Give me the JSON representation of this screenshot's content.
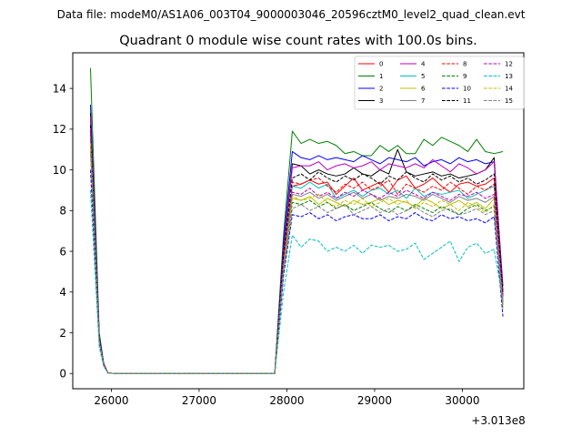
{
  "suptitle": "Data file: modeM0/AS1A06_003T04_9000003046_20596cztM0_level2_quad_clean.evt",
  "chart_data": {
    "type": "line",
    "title": "Quadrant 0 module wise count rates with 100.0s bins.",
    "xlabel": "",
    "ylabel": "",
    "x_offset_label": "+3.013e8",
    "xlim": [
      25560,
      30700
    ],
    "ylim": [
      -0.75,
      15.75
    ],
    "xticks": [
      26000,
      27000,
      28000,
      29000,
      30000
    ],
    "yticks": [
      0,
      2,
      4,
      6,
      8,
      10,
      12,
      14
    ],
    "grid": false,
    "legend": {
      "placement": "top-right",
      "columns": 4
    },
    "x": [
      25762,
      25862,
      25912,
      25962,
      26062,
      26162,
      26262,
      26362,
      26462,
      26562,
      26662,
      26762,
      26862,
      26962,
      27062,
      27162,
      27262,
      27362,
      27462,
      27562,
      27662,
      27762,
      27862,
      27962,
      28062,
      28162,
      28262,
      28362,
      28462,
      28562,
      28662,
      28762,
      28862,
      28962,
      29062,
      29162,
      29262,
      29362,
      29462,
      29562,
      29662,
      29762,
      29862,
      29962,
      30062,
      30162,
      30262,
      30362,
      30462
    ],
    "series": [
      {
        "name": "0",
        "color": "#ff0000",
        "dash": "solid",
        "values": [
          12.5,
          1.8,
          0.45,
          0.02,
          0,
          0,
          0,
          0,
          0,
          0,
          0,
          0,
          0,
          0,
          0,
          0,
          0,
          0,
          0,
          0,
          0,
          0,
          0,
          5.5,
          9.2,
          9.3,
          9.5,
          9.3,
          9.4,
          8.8,
          9.2,
          9.6,
          9.0,
          9.2,
          9.4,
          8.9,
          9.5,
          9.7,
          9.1,
          9.3,
          9.6,
          9.2,
          8.9,
          9.3,
          9.4,
          9.2,
          9.3,
          9.6,
          3.8
        ]
      },
      {
        "name": "1",
        "color": "#008000",
        "dash": "solid",
        "values": [
          15.0,
          2.0,
          0.5,
          0.02,
          0,
          0,
          0,
          0,
          0,
          0,
          0,
          0,
          0,
          0,
          0,
          0,
          0,
          0,
          0,
          0,
          0,
          0,
          0,
          6.8,
          11.9,
          11.3,
          11.5,
          11.3,
          11.4,
          11.2,
          10.8,
          10.9,
          10.7,
          10.7,
          11.2,
          10.9,
          11.2,
          10.8,
          10.8,
          11.5,
          11.2,
          11.6,
          11.4,
          11.2,
          10.9,
          11.5,
          10.9,
          10.8,
          10.9
        ]
      },
      {
        "name": "2",
        "color": "#0000ff",
        "dash": "solid",
        "values": [
          13.2,
          1.9,
          0.5,
          0.02,
          0,
          0,
          0,
          0,
          0,
          0,
          0,
          0,
          0,
          0,
          0,
          0,
          0,
          0,
          0,
          0,
          0,
          0,
          0,
          6.4,
          10.9,
          10.6,
          10.5,
          10.7,
          10.5,
          10.6,
          10.5,
          10.4,
          10.7,
          10.5,
          10.3,
          10.6,
          10.5,
          10.4,
          10.6,
          10.2,
          10.4,
          10.5,
          10.3,
          10.6,
          10.4,
          10.5,
          10.3,
          10.4,
          4.3
        ]
      },
      {
        "name": "3",
        "color": "#000000",
        "dash": "solid",
        "values": [
          12.8,
          1.8,
          0.45,
          0.02,
          0,
          0,
          0,
          0,
          0,
          0,
          0,
          0,
          0,
          0,
          0,
          0,
          0,
          0,
          0,
          0,
          0,
          0,
          0,
          6.0,
          10.3,
          10.2,
          9.8,
          10.0,
          9.8,
          9.7,
          9.8,
          10.1,
          9.8,
          9.7,
          10.0,
          9.8,
          11.0,
          9.9,
          9.7,
          9.8,
          9.9,
          9.7,
          9.8,
          9.6,
          9.7,
          9.8,
          10.0,
          10.6,
          4.0
        ]
      },
      {
        "name": "4",
        "color": "#bf00bf",
        "dash": "solid",
        "values": [
          12.6,
          1.8,
          0.45,
          0.02,
          0,
          0,
          0,
          0,
          0,
          0,
          0,
          0,
          0,
          0,
          0,
          0,
          0,
          0,
          0,
          0,
          0,
          0,
          0,
          6.1,
          10.1,
          10.2,
          10.2,
          10.4,
          10.0,
          10.2,
          10.3,
          10.1,
          10.2,
          10.4,
          10.0,
          10.3,
          10.2,
          10.1,
          10.3,
          10.1,
          10.5,
          10.2,
          9.9,
          10.3,
          10.1,
          9.8,
          10.0,
          10.4,
          4.0
        ]
      },
      {
        "name": "5",
        "color": "#00bfbf",
        "dash": "solid",
        "values": [
          11.5,
          1.7,
          0.4,
          0.02,
          0,
          0,
          0,
          0,
          0,
          0,
          0,
          0,
          0,
          0,
          0,
          0,
          0,
          0,
          0,
          0,
          0,
          0,
          0,
          5.6,
          9.2,
          9.1,
          9.4,
          9.1,
          9.3,
          8.6,
          8.8,
          9.0,
          8.7,
          9.0,
          9.1,
          8.8,
          9.0,
          8.6,
          9.1,
          8.7,
          8.9,
          8.8,
          8.9,
          9.0,
          8.6,
          8.8,
          9.0,
          9.2,
          3.6
        ]
      },
      {
        "name": "6",
        "color": "#bfbf00",
        "dash": "solid",
        "values": [
          11.0,
          1.6,
          0.4,
          0.02,
          0,
          0,
          0,
          0,
          0,
          0,
          0,
          0,
          0,
          0,
          0,
          0,
          0,
          0,
          0,
          0,
          0,
          0,
          0,
          5.2,
          8.6,
          8.5,
          8.7,
          8.3,
          8.6,
          8.4,
          8.2,
          8.5,
          8.3,
          8.4,
          8.6,
          8.3,
          8.5,
          8.4,
          8.2,
          8.6,
          8.4,
          8.1,
          8.3,
          8.5,
          8.2,
          8.4,
          8.1,
          8.6,
          3.4
        ]
      },
      {
        "name": "7",
        "color": "#808080",
        "dash": "solid",
        "values": [
          11.2,
          1.6,
          0.4,
          0.02,
          0,
          0,
          0,
          0,
          0,
          0,
          0,
          0,
          0,
          0,
          0,
          0,
          0,
          0,
          0,
          0,
          0,
          0,
          0,
          5.3,
          8.8,
          8.7,
          8.9,
          8.6,
          8.8,
          8.5,
          8.7,
          8.9,
          8.6,
          8.8,
          8.5,
          8.7,
          8.6,
          8.8,
          8.7,
          8.5,
          8.8,
          8.6,
          8.4,
          8.7,
          8.5,
          8.6,
          8.4,
          8.7,
          3.5
        ]
      },
      {
        "name": "8",
        "color": "#ff0000",
        "dash": "dashed",
        "values": [
          12.0,
          1.7,
          0.45,
          0.02,
          0,
          0,
          0,
          0,
          0,
          0,
          0,
          0,
          0,
          0,
          0,
          0,
          0,
          0,
          0,
          0,
          0,
          0,
          0,
          5.7,
          9.4,
          9.3,
          9.5,
          9.6,
          9.2,
          8.9,
          9.3,
          9.1,
          9.4,
          9.0,
          9.2,
          9.5,
          8.8,
          9.3,
          9.1,
          8.9,
          9.2,
          9.0,
          9.4,
          9.1,
          8.8,
          9.2,
          9.0,
          9.3,
          3.7
        ]
      },
      {
        "name": "9",
        "color": "#008000",
        "dash": "dashed",
        "values": [
          11.8,
          1.7,
          0.45,
          0.02,
          0,
          0,
          0,
          0,
          0,
          0,
          0,
          0,
          0,
          0,
          0,
          0,
          0,
          0,
          0,
          0,
          0,
          0,
          0,
          5.1,
          8.4,
          8.3,
          8.5,
          8.2,
          8.4,
          8.1,
          8.3,
          8.0,
          8.2,
          8.4,
          8.1,
          7.9,
          8.2,
          8.0,
          8.3,
          8.1,
          7.9,
          8.2,
          8.0,
          7.8,
          8.1,
          8.3,
          8.0,
          8.2,
          3.3
        ]
      },
      {
        "name": "10",
        "color": "#0000ff",
        "dash": "dashed",
        "values": [
          10.0,
          1.5,
          0.4,
          0.02,
          0,
          0,
          0,
          0,
          0,
          0,
          0,
          0,
          0,
          0,
          0,
          0,
          0,
          0,
          0,
          0,
          0,
          0,
          0,
          4.8,
          7.8,
          7.7,
          7.9,
          7.6,
          7.8,
          7.5,
          7.7,
          7.8,
          7.6,
          7.6,
          7.8,
          7.5,
          7.7,
          7.6,
          7.9,
          7.6,
          7.5,
          7.8,
          7.6,
          7.7,
          7.5,
          7.6,
          7.4,
          7.7,
          2.8
        ]
      },
      {
        "name": "11",
        "color": "#000000",
        "dash": "dashed",
        "values": [
          12.2,
          1.8,
          0.45,
          0.02,
          0,
          0,
          0,
          0,
          0,
          0,
          0,
          0,
          0,
          0,
          0,
          0,
          0,
          0,
          0,
          0,
          0,
          0,
          0,
          5.9,
          9.6,
          9.8,
          9.5,
          9.9,
          9.6,
          9.4,
          9.7,
          9.5,
          9.8,
          9.6,
          9.3,
          9.7,
          9.5,
          9.9,
          9.6,
          9.4,
          9.8,
          9.5,
          9.7,
          9.4,
          9.6,
          9.3,
          9.5,
          9.8,
          3.9
        ]
      },
      {
        "name": "12",
        "color": "#bf00bf",
        "dash": "dashed",
        "values": [
          12.0,
          1.7,
          0.45,
          0.02,
          0,
          0,
          0,
          0,
          0,
          0,
          0,
          0,
          0,
          0,
          0,
          0,
          0,
          0,
          0,
          0,
          0,
          0,
          0,
          5.4,
          8.9,
          8.8,
          9.1,
          8.7,
          8.9,
          8.6,
          8.9,
          8.7,
          9.0,
          8.8,
          8.6,
          8.9,
          8.7,
          9.0,
          8.8,
          8.6,
          8.9,
          8.7,
          8.5,
          8.8,
          8.7,
          8.9,
          8.6,
          8.8,
          3.5
        ]
      },
      {
        "name": "13",
        "color": "#00bfbf",
        "dash": "dashed",
        "values": [
          9.0,
          1.3,
          0.35,
          0.02,
          0,
          0,
          0,
          0,
          0,
          0,
          0,
          0,
          0,
          0,
          0,
          0,
          0,
          0,
          0,
          0,
          0,
          0,
          0,
          4.0,
          6.8,
          6.2,
          6.6,
          6.5,
          6.0,
          6.2,
          6.0,
          6.3,
          5.9,
          6.3,
          6.2,
          6.3,
          6.0,
          6.1,
          6.4,
          5.6,
          5.9,
          6.2,
          6.5,
          5.5,
          6.2,
          6.4,
          5.9,
          6.1,
          3.6
        ]
      },
      {
        "name": "14",
        "color": "#bfbf00",
        "dash": "dashed",
        "values": [
          11.3,
          1.6,
          0.4,
          0.02,
          0,
          0,
          0,
          0,
          0,
          0,
          0,
          0,
          0,
          0,
          0,
          0,
          0,
          0,
          0,
          0,
          0,
          0,
          0,
          5.2,
          8.7,
          8.5,
          8.6,
          8.8,
          8.4,
          8.2,
          8.5,
          8.3,
          8.6,
          8.2,
          8.4,
          8.6,
          8.3,
          8.5,
          8.1,
          8.4,
          8.2,
          8.5,
          8.3,
          8.0,
          8.4,
          8.2,
          7.9,
          8.3,
          3.3
        ]
      },
      {
        "name": "15",
        "color": "#808080",
        "dash": "dashed",
        "values": [
          10.8,
          1.6,
          0.4,
          0.02,
          0,
          0,
          0,
          0,
          0,
          0,
          0,
          0,
          0,
          0,
          0,
          0,
          0,
          0,
          0,
          0,
          0,
          0,
          0,
          5.0,
          8.1,
          8.3,
          8.0,
          8.2,
          7.9,
          8.1,
          8.3,
          7.8,
          8.0,
          8.2,
          7.9,
          8.1,
          7.8,
          8.0,
          8.2,
          7.9,
          7.7,
          8.0,
          8.1,
          7.8,
          7.9,
          8.1,
          7.8,
          8.0,
          3.2
        ]
      }
    ]
  }
}
